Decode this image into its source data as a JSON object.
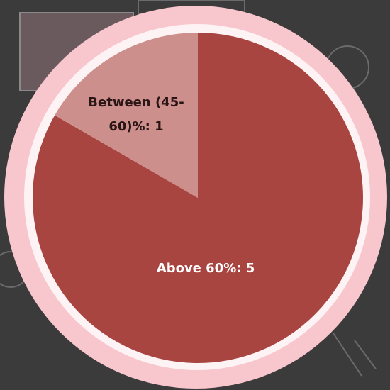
{
  "chart_data": {
    "type": "pie",
    "categories": [
      "Above 60%",
      "Between (45-60)%"
    ],
    "values": [
      5,
      1
    ],
    "value_labels": [
      "Above 60%: 5",
      "Between (45-60)%: 1"
    ],
    "colors": [
      "#a84541",
      "#cd8f8c"
    ]
  }
}
